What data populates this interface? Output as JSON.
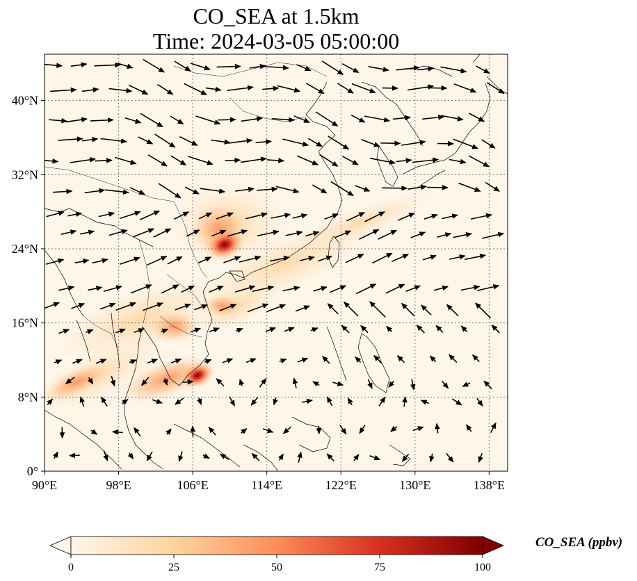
{
  "title_line1": "CO_SEA at 1.5km",
  "title_line2": "Time: 2024-03-05 05:00:00",
  "map": {
    "lon_range": [
      90,
      140
    ],
    "lat_range": [
      0,
      45
    ],
    "lon_ticks": [
      {
        "value": 90,
        "label": "90°E"
      },
      {
        "value": 98,
        "label": "98°E"
      },
      {
        "value": 106,
        "label": "106°E"
      },
      {
        "value": 114,
        "label": "114°E"
      },
      {
        "value": 122,
        "label": "122°E"
      },
      {
        "value": 130,
        "label": "130°E"
      },
      {
        "value": 138,
        "label": "138°E"
      }
    ],
    "lat_ticks": [
      {
        "value": 0,
        "label": "0°"
      },
      {
        "value": 8,
        "label": "8°N"
      },
      {
        "value": 16,
        "label": "16°N"
      },
      {
        "value": 24,
        "label": "24°N"
      },
      {
        "value": 32,
        "label": "32°N"
      },
      {
        "value": 40,
        "label": "40°N"
      }
    ],
    "gridlines": true,
    "background_color": "#fff6ea",
    "hotspots": [
      {
        "lon": 109.5,
        "lat": 24.2,
        "value": 100
      },
      {
        "lon": 106.5,
        "lat": 10.5,
        "value": 100
      },
      {
        "lon": 110.5,
        "lat": 26.0,
        "value": 60
      },
      {
        "lon": 103.5,
        "lat": 15.0,
        "value": 55
      },
      {
        "lon": 108.5,
        "lat": 18.5,
        "value": 45
      },
      {
        "lon": 92.0,
        "lat": 9.0,
        "value": 40
      },
      {
        "lon": 113.5,
        "lat": 21.5,
        "value": 30
      }
    ]
  },
  "colorbar": {
    "title": "CO_SEA (ppbv)",
    "min": 0,
    "max": 100,
    "ticks": [
      "0",
      "25",
      "50",
      "75",
      "100"
    ],
    "colors": [
      "#fff5eb",
      "#fdd49e",
      "#fc8d59",
      "#d7301f",
      "#7f0000"
    ]
  }
}
